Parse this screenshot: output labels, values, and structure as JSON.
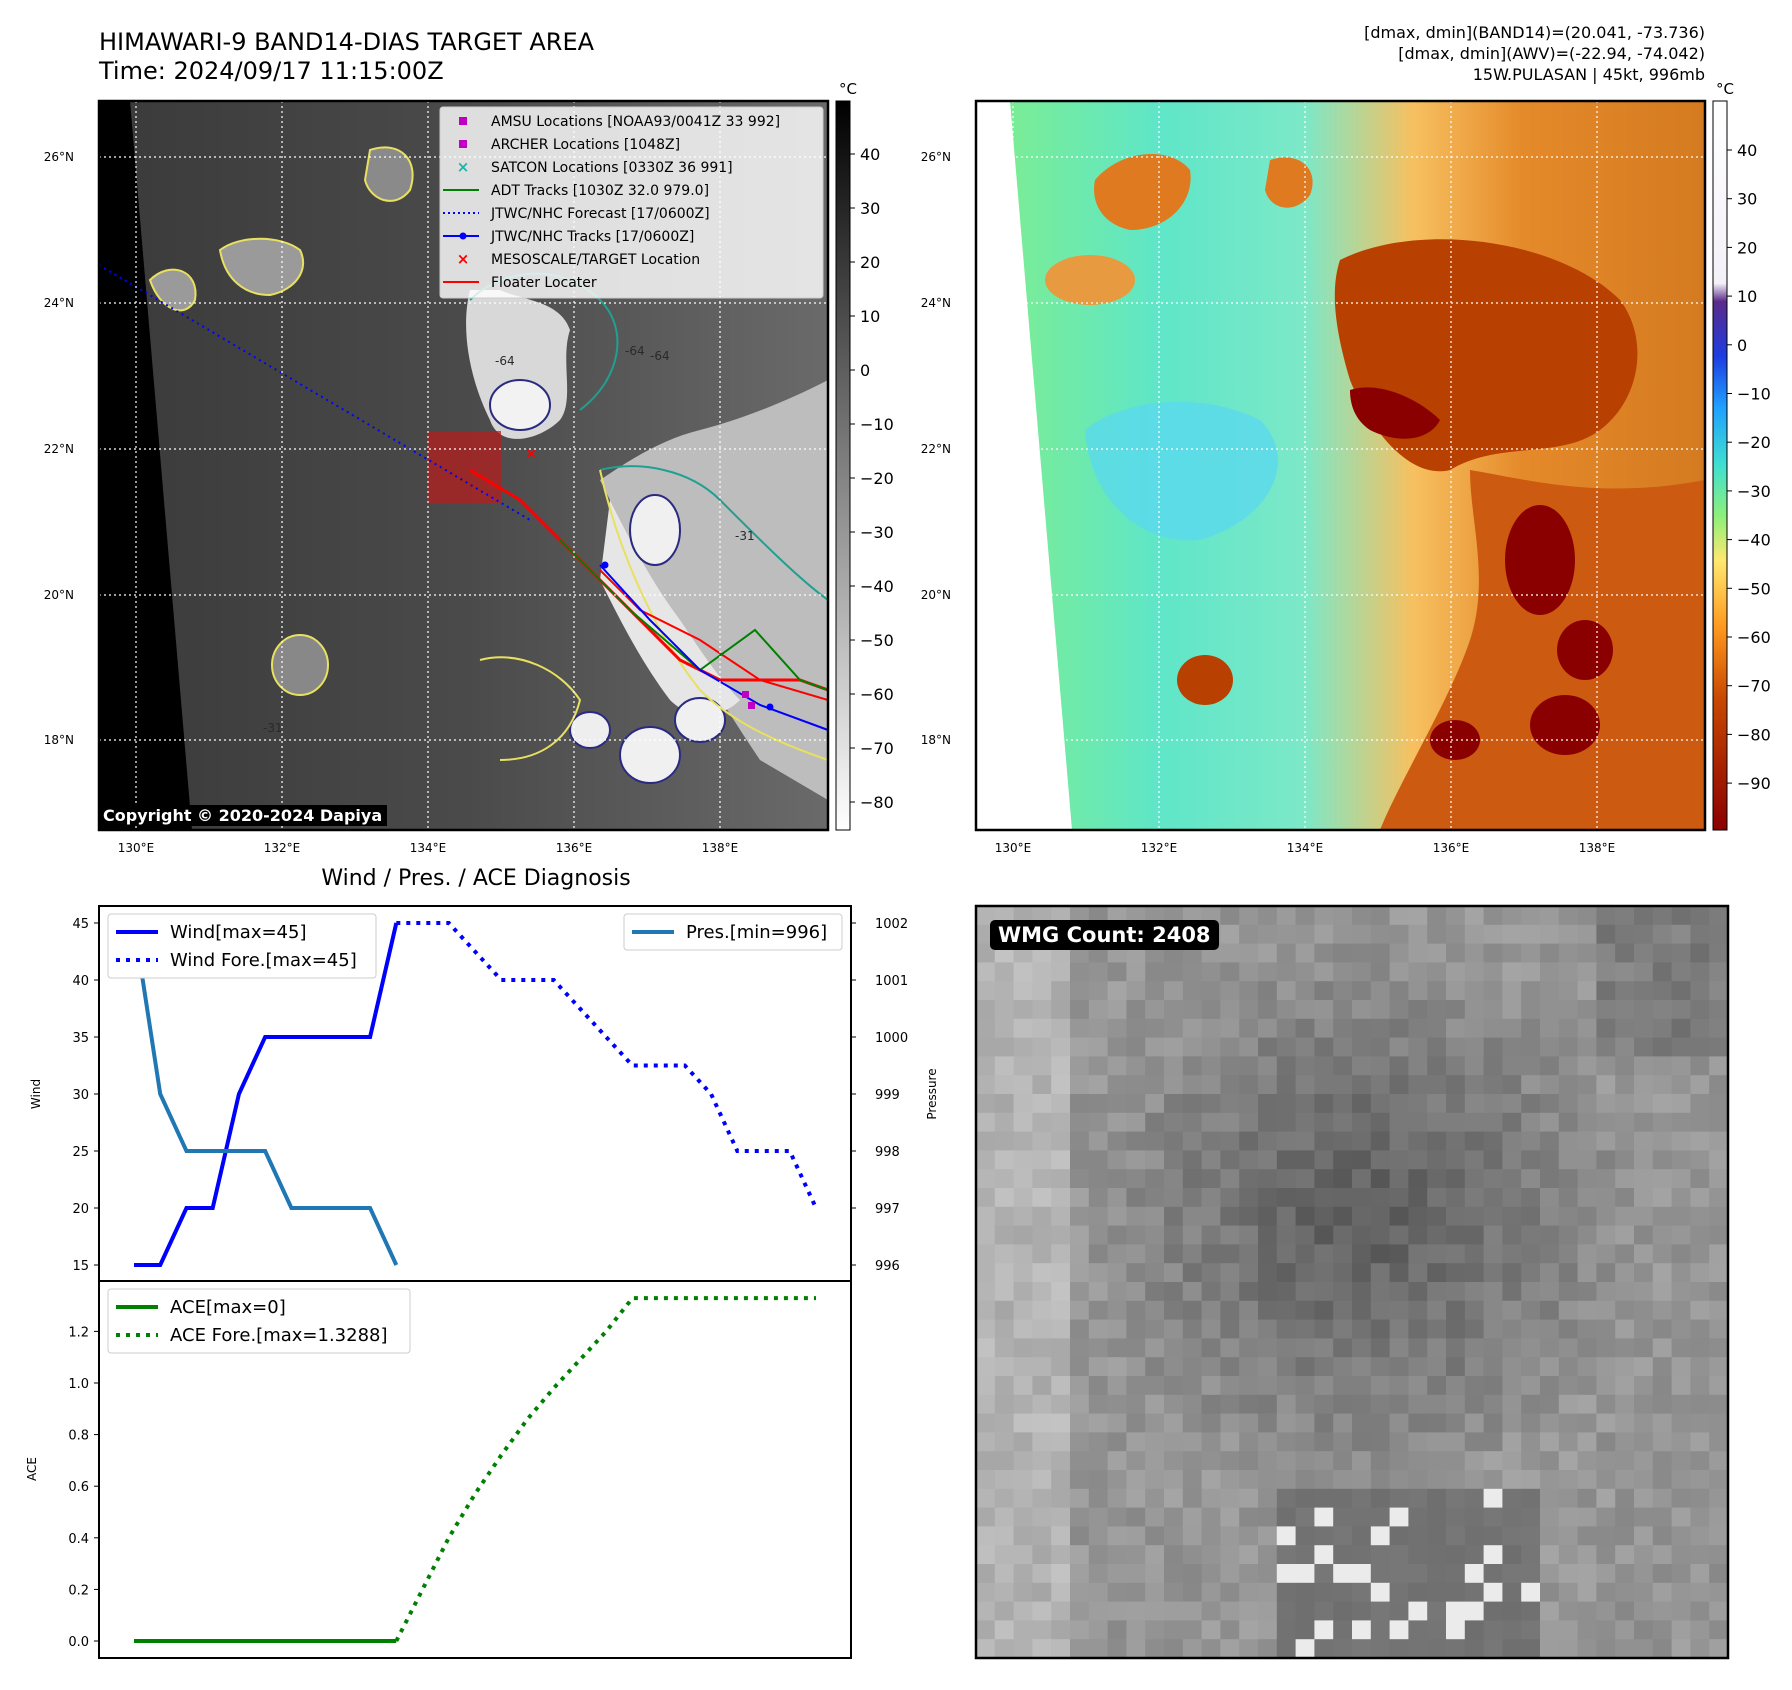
{
  "header": {
    "title_line1": "HIMAWARI-9 BAND14-DIAS TARGET AREA",
    "title_line2": "Time: 2024/09/17 11:15:00Z",
    "right_line1": "[dmax, dmin](BAND14)=(20.041, -73.736)",
    "right_line2": "[dmax, dmin](AWV)=(-22.94, -74.042)",
    "right_line3": "15W.PULASAN | 45kt, 996mb"
  },
  "copyright": "Copyright © 2020-2024 Dapiya",
  "unit_label": "°C",
  "map": {
    "lat_labels": [
      "26°N",
      "24°N",
      "22°N",
      "20°N",
      "18°N"
    ],
    "lon_labels": [
      "130°E",
      "132°E",
      "134°E",
      "136°E",
      "138°E"
    ],
    "contour_labels": [
      "-64",
      "-64",
      "-31",
      "-31",
      "-64"
    ]
  },
  "legend_left": [
    {
      "label": "AMSU Locations [NOAA93/0041Z 33 992]",
      "marker": "square",
      "color": "#c000c0"
    },
    {
      "label": "ARCHER Locations [1048Z]",
      "marker": "square",
      "color": "#c000c0"
    },
    {
      "label": "SATCON Locations [0330Z 36 991]",
      "marker": "x",
      "color": "#20b2aa"
    },
    {
      "label": "ADT Tracks [1030Z 32.0 979.0]",
      "marker": "line",
      "color": "#008000"
    },
    {
      "label": "JTWC/NHC Forecast [17/0600Z]",
      "marker": "dotted",
      "color": "#0000ff"
    },
    {
      "label": "JTWC/NHC Tracks [17/0600Z]",
      "marker": "line-dot",
      "color": "#0000ff"
    },
    {
      "label": "MESOSCALE/TARGET Location",
      "marker": "x",
      "color": "#ff0000"
    },
    {
      "label": "Floater Locater",
      "marker": "line",
      "color": "#ff0000"
    }
  ],
  "colorbar_left": {
    "ticks": [
      "40",
      "30",
      "20",
      "10",
      "0",
      "−10",
      "−20",
      "−30",
      "−40",
      "−50",
      "−60",
      "−70",
      "−80"
    ]
  },
  "colorbar_right": {
    "ticks": [
      "40",
      "30",
      "20",
      "10",
      "0",
      "−10",
      "−20",
      "−30",
      "−40",
      "−50",
      "−60",
      "−70",
      "−80",
      "−90"
    ]
  },
  "diag_title": "Wind / Pres. / ACE Diagnosis",
  "wmg_label": "WMG Count: 2408",
  "chart_data": [
    {
      "type": "line",
      "title": "Wind / Pres. / ACE Diagnosis",
      "ylabel": "Wind",
      "ylabel_right": "Pressure",
      "ylim": [
        15,
        45
      ],
      "ylim_right": [
        996,
        1002
      ],
      "yticks": [
        "45",
        "40",
        "35",
        "30",
        "25",
        "20",
        "15"
      ],
      "yticks_right": [
        "1002",
        "1001",
        "1000",
        "999",
        "998",
        "997",
        "996"
      ],
      "x": [
        0,
        1,
        2,
        3,
        4,
        5,
        6,
        7,
        8,
        9,
        10,
        11,
        12,
        13,
        14,
        15,
        16,
        17,
        18,
        19,
        20,
        21,
        22,
        23,
        24,
        25,
        26
      ],
      "series": [
        {
          "name": "Wind[max=45]",
          "axis": "left",
          "style": "solid",
          "color": "#0000ff",
          "x": [
            0,
            1,
            2,
            3,
            4,
            5,
            6,
            7,
            8,
            9,
            10
          ],
          "values": [
            15,
            15,
            20,
            20,
            30,
            35,
            35,
            35,
            35,
            35,
            45
          ]
        },
        {
          "name": "Wind Fore.[max=45]",
          "axis": "left",
          "style": "dotted",
          "color": "#0000ff",
          "x": [
            10,
            11,
            12,
            13,
            14,
            15,
            16,
            17,
            18,
            19,
            20,
            21,
            22,
            23,
            24,
            25,
            26
          ],
          "values": [
            45,
            45,
            45,
            42.5,
            40,
            40,
            40,
            37.5,
            35,
            32.5,
            32.5,
            32.5,
            30,
            25,
            25,
            25,
            20
          ]
        },
        {
          "name": "Pres.[min=996]",
          "axis": "right",
          "style": "solid",
          "color": "#1f77b4",
          "x": [
            0,
            1,
            2,
            3,
            4,
            5,
            6,
            7,
            8,
            9,
            10
          ],
          "values": [
            1002,
            999,
            998,
            998,
            998,
            998,
            997,
            997,
            997,
            997,
            996
          ]
        }
      ]
    },
    {
      "type": "line",
      "ylabel": "ACE",
      "ylim": [
        0,
        1.35
      ],
      "yticks": [
        "1.2",
        "1.0",
        "0.8",
        "0.6",
        "0.4",
        "0.2",
        "0.0"
      ],
      "series": [
        {
          "name": "ACE[max=0]",
          "style": "solid",
          "color": "#008000",
          "x": [
            0,
            1,
            2,
            3,
            4,
            5,
            6,
            7,
            8,
            9,
            10
          ],
          "values": [
            0,
            0,
            0,
            0,
            0,
            0,
            0,
            0,
            0,
            0,
            0
          ]
        },
        {
          "name": "ACE Fore.[max=1.3288]",
          "style": "dotted",
          "color": "#008000",
          "x": [
            10,
            11,
            12,
            13,
            14,
            15,
            16,
            17,
            18,
            19,
            20,
            21,
            22,
            23,
            24,
            25,
            26
          ],
          "values": [
            0,
            0.2,
            0.4,
            0.57,
            0.72,
            0.86,
            0.98,
            1.09,
            1.2,
            1.3288,
            1.3288,
            1.3288,
            1.3288,
            1.3288,
            1.3288,
            1.3288,
            1.3288
          ]
        }
      ]
    }
  ]
}
